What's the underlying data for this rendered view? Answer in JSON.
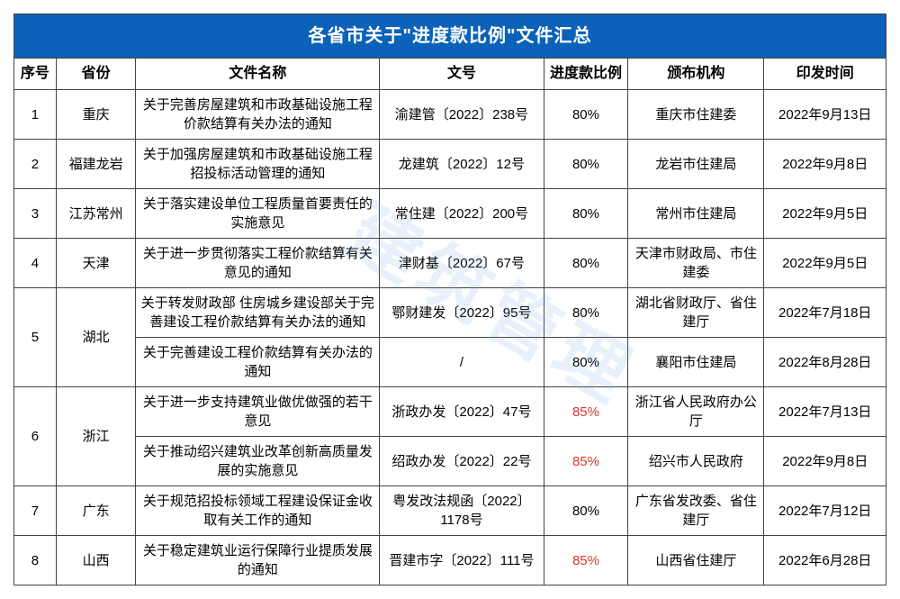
{
  "title": "各省市关于\"进度款比例\"文件汇总",
  "watermark": "建筑管理",
  "headers": {
    "idx": "序号",
    "prov": "省份",
    "name": "文件名称",
    "num": "文号",
    "ratio": "进度款比例",
    "org": "颁布机构",
    "date": "印发时间"
  },
  "title_bg": "#0b62b8",
  "title_color": "#ffffff",
  "border_color": "#444444",
  "red_color": "#d9352c",
  "rows": [
    {
      "idx": "1",
      "prov": "重庆",
      "name": "关于完善房屋建筑和市政基础设施工程价款结算有关办法的通知",
      "num": "渝建管〔2022〕238号",
      "ratio": "80%",
      "org": "重庆市住建委",
      "date": "2022年9月13日"
    },
    {
      "idx": "2",
      "prov": "福建龙岩",
      "name": "关于加强房屋建筑和市政基础设施工程招投标活动管理的通知",
      "num": "龙建筑〔2022〕12号",
      "ratio": "80%",
      "org": "龙岩市住建局",
      "date": "2022年9月8日"
    },
    {
      "idx": "3",
      "prov": "江苏常州",
      "name": "关于落实建设单位工程质量首要责任的实施意见",
      "num": "常住建〔2022〕200号",
      "ratio": "80%",
      "org": "常州市住建局",
      "date": "2022年9月5日"
    },
    {
      "idx": "4",
      "prov": "天津",
      "name": "关于进一步贯彻落实工程价款结算有关意见的通知",
      "num": "津财基〔2022〕67号",
      "ratio": "80%",
      "org": "天津市财政局、市住建委",
      "date": "2022年9月5日"
    },
    {
      "idx": "5",
      "prov": "湖北",
      "sub": [
        {
          "name": "关于转发财政部 住房城乡建设部关于完善建设工程价款结算有关办法的通知",
          "num": "鄂财建发〔2022〕95号",
          "ratio": "80%",
          "org": "湖北省财政厅、省住建厅",
          "date": "2022年7月18日"
        },
        {
          "name": "关于完善建设工程价款结算有关办法的通知",
          "num": "/",
          "ratio": "80%",
          "org": "襄阳市住建局",
          "date": "2022年8月28日"
        }
      ]
    },
    {
      "idx": "6",
      "prov": "浙江",
      "sub": [
        {
          "name": "关于进一步支持建筑业做优做强的若干意见",
          "num": "浙政办发〔2022〕47号",
          "ratio": "85%",
          "ratio_red": true,
          "org": "浙江省人民政府办公厅",
          "date": "2022年7月13日"
        },
        {
          "name": "关于推动绍兴建筑业改革创新高质量发展的实施意见",
          "num": "绍政办发〔2022〕22号",
          "ratio": "85%",
          "ratio_red": true,
          "org": "绍兴市人民政府",
          "date": "2022年9月8日"
        }
      ]
    },
    {
      "idx": "7",
      "prov": "广东",
      "name": "关于规范招投标领域工程建设保证金收取有关工作的通知",
      "num": "粤发改法规函〔2022〕1178号",
      "ratio": "80%",
      "org": "广东省发改委、省住建厅",
      "date": "2022年7月12日"
    },
    {
      "idx": "8",
      "prov": "山西",
      "name": "关于稳定建筑业运行保障行业提质发展的通知",
      "num": "晋建市字〔2022〕111号",
      "ratio": "85%",
      "ratio_red": true,
      "org": "山西省住建厅",
      "date": "2022年6月28日"
    }
  ]
}
